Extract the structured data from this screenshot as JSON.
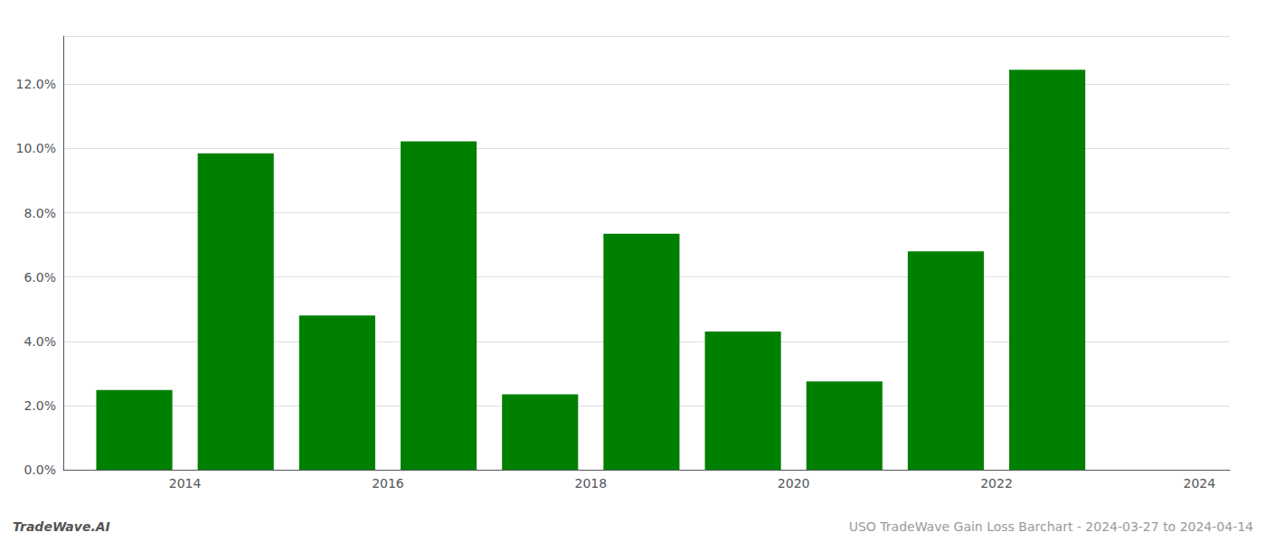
{
  "chart_data": {
    "type": "bar",
    "x": [
      2014,
      2015,
      2016,
      2017,
      2018,
      2019,
      2020,
      2021,
      2022,
      2023
    ],
    "values": [
      0.0248,
      0.0985,
      0.048,
      0.1022,
      0.0235,
      0.0735,
      0.043,
      0.0275,
      0.068,
      0.1245
    ],
    "color": "#008000",
    "xlim": [
      2013.3,
      2024.8
    ],
    "xticks": [
      {
        "value": 2014.5,
        "label": "2014"
      },
      {
        "value": 2016.5,
        "label": "2016"
      },
      {
        "value": 2018.5,
        "label": "2018"
      },
      {
        "value": 2020.5,
        "label": "2020"
      },
      {
        "value": 2022.5,
        "label": "2022"
      },
      {
        "value": 2024.5,
        "label": "2024"
      }
    ],
    "ylim": [
      0,
      0.135
    ],
    "yticks": [
      {
        "value": 0.0,
        "label": "0.0%"
      },
      {
        "value": 0.02,
        "label": "2.0%"
      },
      {
        "value": 0.04,
        "label": "4.0%"
      },
      {
        "value": 0.06,
        "label": "6.0%"
      },
      {
        "value": 0.08,
        "label": "8.0%"
      },
      {
        "value": 0.1,
        "label": "10.0%"
      },
      {
        "value": 0.12,
        "label": "12.0%"
      }
    ],
    "grid": true,
    "annotations": [
      "TradeWave.AI",
      "USO TradeWave Gain Loss Barchart - 2024-03-27 to 2024-04-14"
    ]
  }
}
